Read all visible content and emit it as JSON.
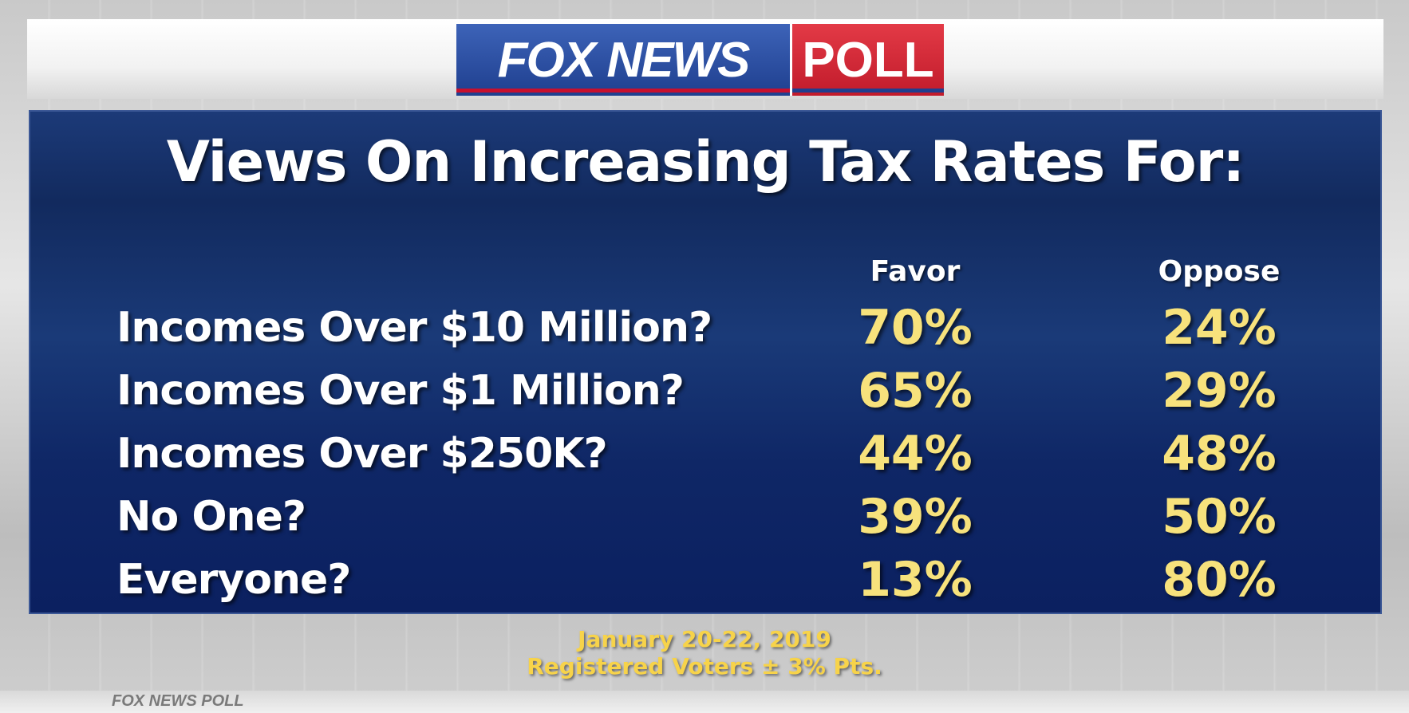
{
  "logo": {
    "fox_text": "FOX NEWS",
    "poll_text": "POLL",
    "bottom_text": "FOX NEWS POLL"
  },
  "colors": {
    "panel": "#122a5e",
    "value": "#f7e27c",
    "footer": "#f7d34a",
    "fox_blue": "#1f3f8f",
    "poll_red": "#c11b2b"
  },
  "chart_data": {
    "type": "table",
    "title": "Views On Increasing Tax Rates For:",
    "columns": [
      "Favor",
      "Oppose"
    ],
    "rows": [
      {
        "label": "Incomes Over $10 Million?",
        "favor": "70%",
        "oppose": "24%"
      },
      {
        "label": "Incomes Over $1 Million?",
        "favor": "65%",
        "oppose": "29%"
      },
      {
        "label": "Incomes Over $250K?",
        "favor": "44%",
        "oppose": "48%"
      },
      {
        "label": "No One?",
        "favor": "39%",
        "oppose": "50%"
      },
      {
        "label": "Everyone?",
        "favor": "13%",
        "oppose": "80%"
      }
    ]
  },
  "footer": {
    "line1": "January 20-22, 2019",
    "line2": "Registered Voters ± 3% Pts."
  }
}
